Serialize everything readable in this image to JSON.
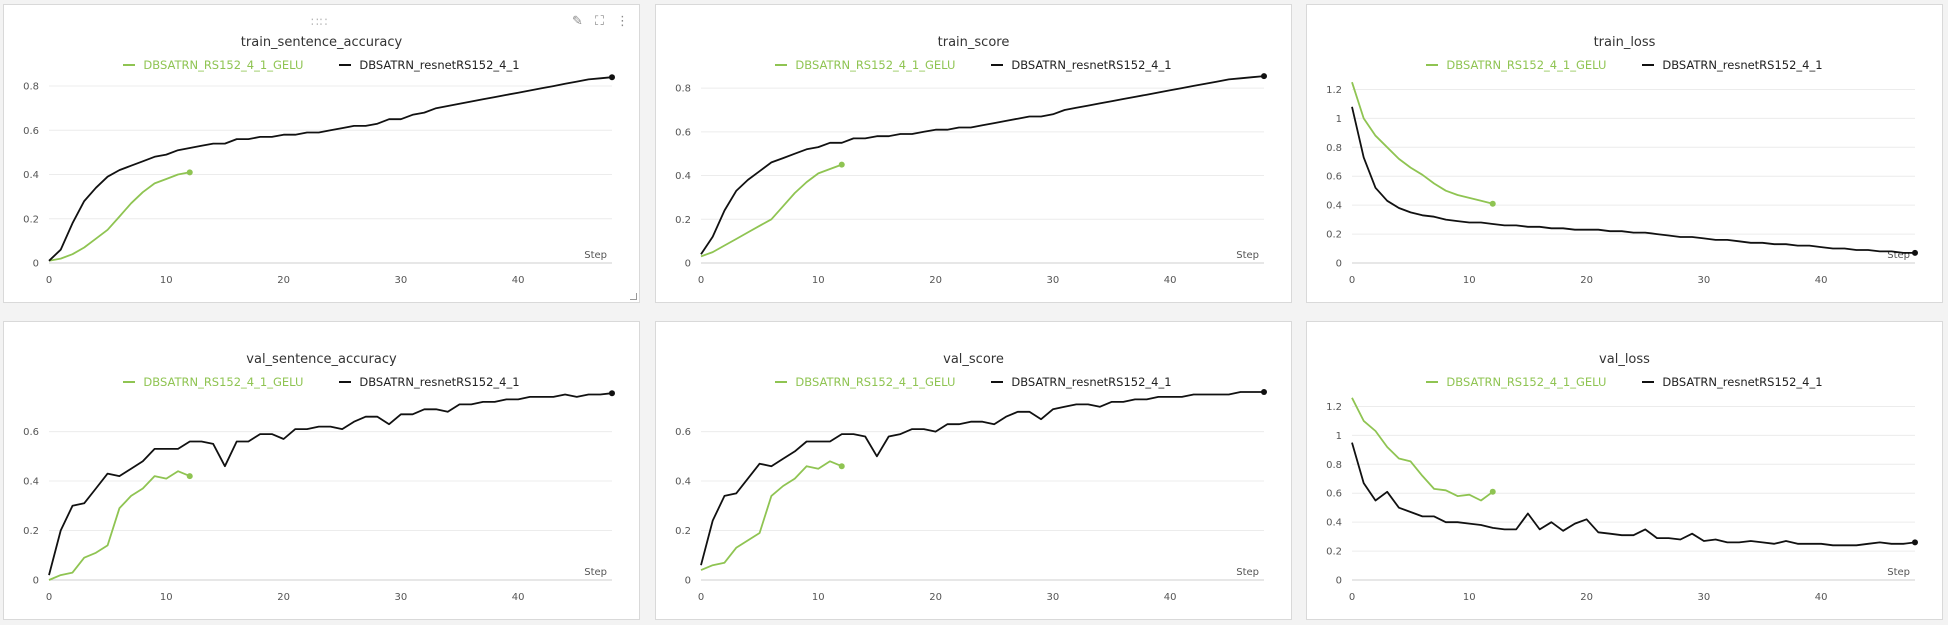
{
  "colors": {
    "green": "#8fc452",
    "black": "#111111",
    "grid": "#ececec"
  },
  "icons": {
    "edit": "pencil-icon",
    "expand": "expand-icon",
    "menu": "more-vertical-icon",
    "drag": "drag-handle-icon"
  },
  "legend": {
    "green": "DBSATRN_RS152_4_1_GELU",
    "black": "DBSATRN_resnetRS152_4_1"
  },
  "chart_data": [
    {
      "type": "line",
      "title": "train_sentence_accuracy",
      "xlabel": "Step",
      "xlim": [
        0,
        48
      ],
      "xticks": [
        0,
        10,
        20,
        30,
        40
      ],
      "ylim": [
        0,
        0.85
      ],
      "yticks": [
        0,
        0.2,
        0.4,
        0.6,
        0.8
      ],
      "series": [
        {
          "name": "DBSATRN_RS152_4_1_GELU",
          "color": "green",
          "x": [
            0,
            1,
            2,
            3,
            4,
            5,
            6,
            7,
            8,
            9,
            10,
            11,
            12
          ],
          "y": [
            0.01,
            0.02,
            0.04,
            0.07,
            0.11,
            0.15,
            0.21,
            0.27,
            0.32,
            0.36,
            0.38,
            0.4,
            0.41
          ]
        },
        {
          "name": "DBSATRN_resnetRS152_4_1",
          "color": "black",
          "x": [
            0,
            1,
            2,
            3,
            4,
            5,
            6,
            7,
            8,
            9,
            10,
            11,
            12,
            13,
            14,
            15,
            16,
            17,
            18,
            19,
            20,
            21,
            22,
            23,
            24,
            25,
            26,
            27,
            28,
            29,
            30,
            31,
            32,
            33,
            34,
            35,
            36,
            37,
            38,
            39,
            40,
            41,
            42,
            43,
            44,
            45,
            46,
            47,
            48
          ],
          "y": [
            0.01,
            0.06,
            0.18,
            0.28,
            0.34,
            0.39,
            0.42,
            0.44,
            0.46,
            0.48,
            0.49,
            0.51,
            0.52,
            0.53,
            0.54,
            0.54,
            0.56,
            0.56,
            0.57,
            0.57,
            0.58,
            0.58,
            0.59,
            0.59,
            0.6,
            0.61,
            0.62,
            0.62,
            0.63,
            0.65,
            0.65,
            0.67,
            0.68,
            0.7,
            0.71,
            0.72,
            0.73,
            0.74,
            0.75,
            0.76,
            0.77,
            0.78,
            0.79,
            0.8,
            0.81,
            0.82,
            0.83,
            0.835,
            0.84
          ]
        }
      ]
    },
    {
      "type": "line",
      "title": "train_score",
      "xlabel": "Step",
      "xlim": [
        0,
        48
      ],
      "xticks": [
        0,
        10,
        20,
        30,
        40
      ],
      "ylim": [
        0,
        0.86
      ],
      "yticks": [
        0,
        0.2,
        0.4,
        0.6,
        0.8
      ],
      "series": [
        {
          "name": "DBSATRN_RS152_4_1_GELU",
          "color": "green",
          "x": [
            0,
            1,
            2,
            3,
            4,
            5,
            6,
            7,
            8,
            9,
            10,
            11,
            12
          ],
          "y": [
            0.03,
            0.05,
            0.08,
            0.11,
            0.14,
            0.17,
            0.2,
            0.26,
            0.32,
            0.37,
            0.41,
            0.43,
            0.45
          ]
        },
        {
          "name": "DBSATRN_resnetRS152_4_1",
          "color": "black",
          "x": [
            0,
            1,
            2,
            3,
            4,
            5,
            6,
            7,
            8,
            9,
            10,
            11,
            12,
            13,
            14,
            15,
            16,
            17,
            18,
            19,
            20,
            21,
            22,
            23,
            24,
            25,
            26,
            27,
            28,
            29,
            30,
            31,
            32,
            33,
            34,
            35,
            36,
            37,
            38,
            39,
            40,
            41,
            42,
            43,
            44,
            45,
            46,
            47,
            48
          ],
          "y": [
            0.04,
            0.12,
            0.24,
            0.33,
            0.38,
            0.42,
            0.46,
            0.48,
            0.5,
            0.52,
            0.53,
            0.55,
            0.55,
            0.57,
            0.57,
            0.58,
            0.58,
            0.59,
            0.59,
            0.6,
            0.61,
            0.61,
            0.62,
            0.62,
            0.63,
            0.64,
            0.65,
            0.66,
            0.67,
            0.67,
            0.68,
            0.7,
            0.71,
            0.72,
            0.73,
            0.74,
            0.75,
            0.76,
            0.77,
            0.78,
            0.79,
            0.8,
            0.81,
            0.82,
            0.83,
            0.84,
            0.845,
            0.85,
            0.855
          ]
        }
      ]
    },
    {
      "type": "line",
      "title": "train_loss",
      "xlabel": "Step",
      "xlim": [
        0,
        48
      ],
      "xticks": [
        0,
        10,
        20,
        30,
        40
      ],
      "ylim": [
        0,
        1.3
      ],
      "yticks": [
        0,
        0.2,
        0.4,
        0.6,
        0.8,
        1.0,
        1.2
      ],
      "yticklabels": [
        "0",
        "0.2",
        "0.4",
        "0.6",
        "0.8",
        "1",
        "1.2"
      ],
      "series": [
        {
          "name": "DBSATRN_RS152_4_1_GELU",
          "color": "green",
          "x": [
            0,
            1,
            2,
            3,
            4,
            5,
            6,
            7,
            8,
            9,
            10,
            11,
            12
          ],
          "y": [
            1.25,
            1.0,
            0.88,
            0.8,
            0.72,
            0.66,
            0.61,
            0.55,
            0.5,
            0.47,
            0.45,
            0.43,
            0.41
          ]
        },
        {
          "name": "DBSATRN_resnetRS152_4_1",
          "color": "black",
          "x": [
            0,
            1,
            2,
            3,
            4,
            5,
            6,
            7,
            8,
            9,
            10,
            11,
            12,
            13,
            14,
            15,
            16,
            17,
            18,
            19,
            20,
            21,
            22,
            23,
            24,
            25,
            26,
            27,
            28,
            29,
            30,
            31,
            32,
            33,
            34,
            35,
            36,
            37,
            38,
            39,
            40,
            41,
            42,
            43,
            44,
            45,
            46,
            47,
            48
          ],
          "y": [
            1.08,
            0.73,
            0.52,
            0.43,
            0.38,
            0.35,
            0.33,
            0.32,
            0.3,
            0.29,
            0.28,
            0.28,
            0.27,
            0.26,
            0.26,
            0.25,
            0.25,
            0.24,
            0.24,
            0.23,
            0.23,
            0.23,
            0.22,
            0.22,
            0.21,
            0.21,
            0.2,
            0.19,
            0.18,
            0.18,
            0.17,
            0.16,
            0.16,
            0.15,
            0.14,
            0.14,
            0.13,
            0.13,
            0.12,
            0.12,
            0.11,
            0.1,
            0.1,
            0.09,
            0.09,
            0.08,
            0.08,
            0.07,
            0.07
          ]
        }
      ]
    },
    {
      "type": "line",
      "title": "val_sentence_accuracy",
      "xlabel": "Step",
      "xlim": [
        0,
        48
      ],
      "xticks": [
        0,
        10,
        20,
        30,
        40
      ],
      "ylim": [
        0,
        0.76
      ],
      "yticks": [
        0,
        0.2,
        0.4,
        0.6
      ],
      "series": [
        {
          "name": "DBSATRN_RS152_4_1_GELU",
          "color": "green",
          "x": [
            0,
            1,
            2,
            3,
            4,
            5,
            6,
            7,
            8,
            9,
            10,
            11,
            12
          ],
          "y": [
            0.0,
            0.02,
            0.03,
            0.09,
            0.11,
            0.14,
            0.29,
            0.34,
            0.37,
            0.42,
            0.41,
            0.44,
            0.42
          ]
        },
        {
          "name": "DBSATRN_resnetRS152_4_1",
          "color": "black",
          "x": [
            0,
            1,
            2,
            3,
            4,
            5,
            6,
            7,
            8,
            9,
            10,
            11,
            12,
            13,
            14,
            15,
            16,
            17,
            18,
            19,
            20,
            21,
            22,
            23,
            24,
            25,
            26,
            27,
            28,
            29,
            30,
            31,
            32,
            33,
            34,
            35,
            36,
            37,
            38,
            39,
            40,
            41,
            42,
            43,
            44,
            45,
            46,
            47,
            48
          ],
          "y": [
            0.02,
            0.2,
            0.3,
            0.31,
            0.37,
            0.43,
            0.42,
            0.45,
            0.48,
            0.53,
            0.53,
            0.53,
            0.56,
            0.56,
            0.55,
            0.46,
            0.56,
            0.56,
            0.59,
            0.59,
            0.57,
            0.61,
            0.61,
            0.62,
            0.62,
            0.61,
            0.64,
            0.66,
            0.66,
            0.63,
            0.67,
            0.67,
            0.69,
            0.69,
            0.68,
            0.71,
            0.71,
            0.72,
            0.72,
            0.73,
            0.73,
            0.74,
            0.74,
            0.74,
            0.75,
            0.74,
            0.75,
            0.75,
            0.755
          ]
        }
      ]
    },
    {
      "type": "line",
      "title": "val_score",
      "xlabel": "Step",
      "xlim": [
        0,
        48
      ],
      "xticks": [
        0,
        10,
        20,
        30,
        40
      ],
      "ylim": [
        0,
        0.76
      ],
      "yticks": [
        0,
        0.2,
        0.4,
        0.6
      ],
      "series": [
        {
          "name": "DBSATRN_RS152_4_1_GELU",
          "color": "green",
          "x": [
            0,
            1,
            2,
            3,
            4,
            5,
            6,
            7,
            8,
            9,
            10,
            11,
            12
          ],
          "y": [
            0.04,
            0.06,
            0.07,
            0.13,
            0.16,
            0.19,
            0.34,
            0.38,
            0.41,
            0.46,
            0.45,
            0.48,
            0.46
          ]
        },
        {
          "name": "DBSATRN_resnetRS152_4_1",
          "color": "black",
          "x": [
            0,
            1,
            2,
            3,
            4,
            5,
            6,
            7,
            8,
            9,
            10,
            11,
            12,
            13,
            14,
            15,
            16,
            17,
            18,
            19,
            20,
            21,
            22,
            23,
            24,
            25,
            26,
            27,
            28,
            29,
            30,
            31,
            32,
            33,
            34,
            35,
            36,
            37,
            38,
            39,
            40,
            41,
            42,
            43,
            44,
            45,
            46,
            47,
            48
          ],
          "y": [
            0.06,
            0.24,
            0.34,
            0.35,
            0.41,
            0.47,
            0.46,
            0.49,
            0.52,
            0.56,
            0.56,
            0.56,
            0.59,
            0.59,
            0.58,
            0.5,
            0.58,
            0.59,
            0.61,
            0.61,
            0.6,
            0.63,
            0.63,
            0.64,
            0.64,
            0.63,
            0.66,
            0.68,
            0.68,
            0.65,
            0.69,
            0.7,
            0.71,
            0.71,
            0.7,
            0.72,
            0.72,
            0.73,
            0.73,
            0.74,
            0.74,
            0.74,
            0.75,
            0.75,
            0.75,
            0.75,
            0.76,
            0.76,
            0.76
          ]
        }
      ]
    },
    {
      "type": "line",
      "title": "val_loss",
      "xlabel": "Step",
      "xlim": [
        0,
        48
      ],
      "xticks": [
        0,
        10,
        20,
        30,
        40
      ],
      "ylim": [
        0,
        1.3
      ],
      "yticks": [
        0,
        0.2,
        0.4,
        0.6,
        0.8,
        1.0,
        1.2
      ],
      "yticklabels": [
        "0",
        "0.2",
        "0.4",
        "0.6",
        "0.8",
        "1",
        "1.2"
      ],
      "series": [
        {
          "name": "DBSATRN_RS152_4_1_GELU",
          "color": "green",
          "x": [
            0,
            1,
            2,
            3,
            4,
            5,
            6,
            7,
            8,
            9,
            10,
            11,
            12
          ],
          "y": [
            1.26,
            1.1,
            1.03,
            0.92,
            0.84,
            0.82,
            0.72,
            0.63,
            0.62,
            0.58,
            0.59,
            0.55,
            0.61
          ]
        },
        {
          "name": "DBSATRN_resnetRS152_4_1",
          "color": "black",
          "x": [
            0,
            1,
            2,
            3,
            4,
            5,
            6,
            7,
            8,
            9,
            10,
            11,
            12,
            13,
            14,
            15,
            16,
            17,
            18,
            19,
            20,
            21,
            22,
            23,
            24,
            25,
            26,
            27,
            28,
            29,
            30,
            31,
            32,
            33,
            34,
            35,
            36,
            37,
            38,
            39,
            40,
            41,
            42,
            43,
            44,
            45,
            46,
            47,
            48
          ],
          "y": [
            0.95,
            0.67,
            0.55,
            0.61,
            0.5,
            0.47,
            0.44,
            0.44,
            0.4,
            0.4,
            0.39,
            0.38,
            0.36,
            0.35,
            0.35,
            0.46,
            0.35,
            0.4,
            0.34,
            0.39,
            0.42,
            0.33,
            0.32,
            0.31,
            0.31,
            0.35,
            0.29,
            0.29,
            0.28,
            0.32,
            0.27,
            0.28,
            0.26,
            0.26,
            0.27,
            0.26,
            0.25,
            0.27,
            0.25,
            0.25,
            0.25,
            0.24,
            0.24,
            0.24,
            0.25,
            0.26,
            0.25,
            0.25,
            0.26
          ]
        }
      ]
    }
  ]
}
